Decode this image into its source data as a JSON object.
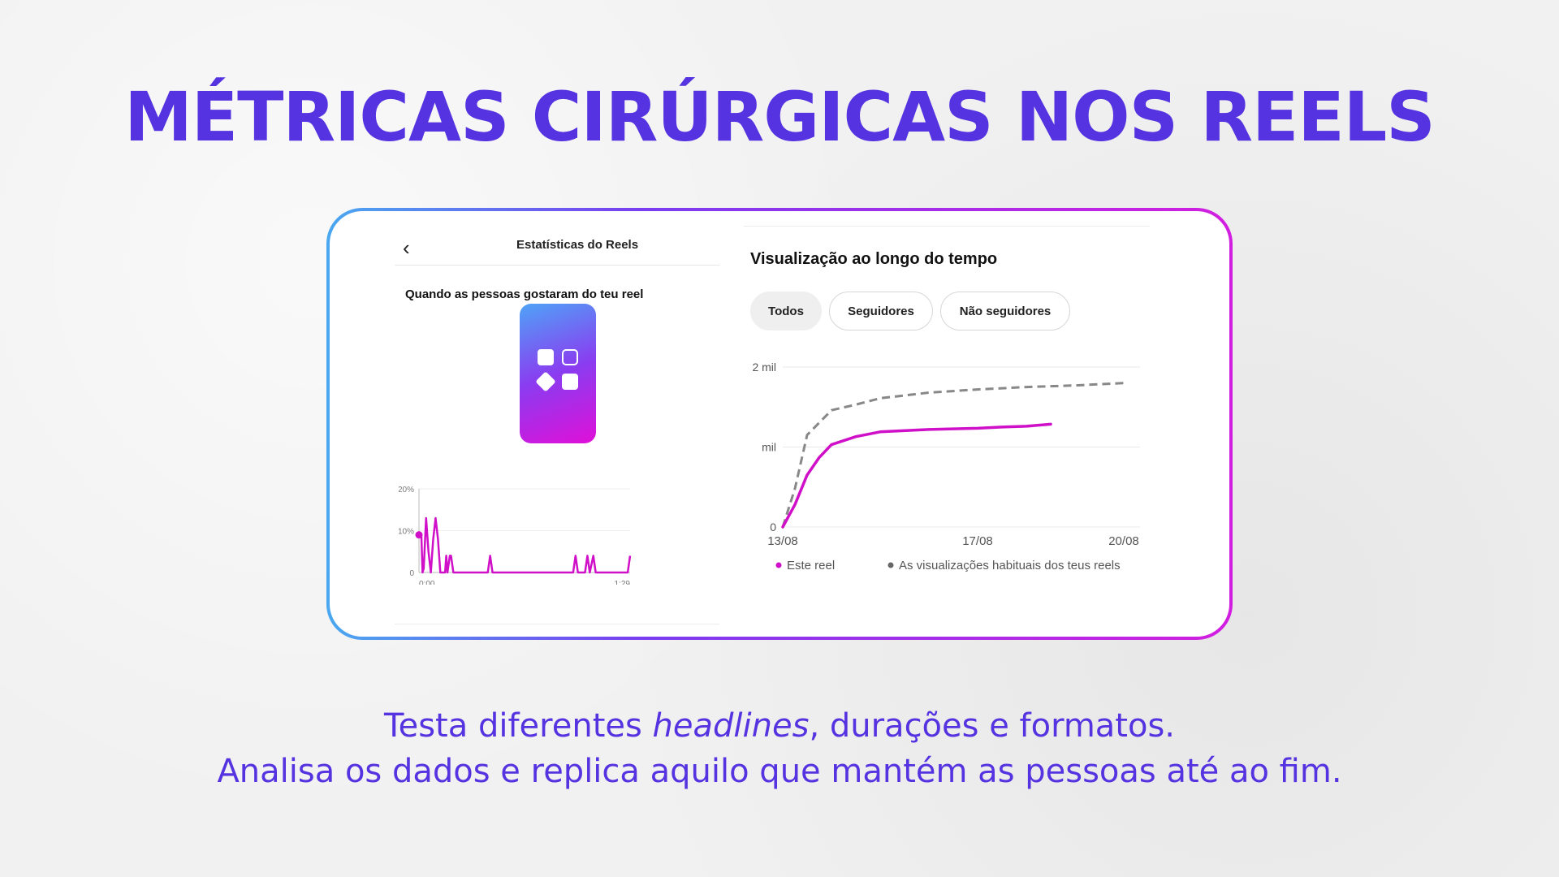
{
  "title": "MÉTRICAS CIRÚRGICAS NOS REELS",
  "colors": {
    "accent": "#5533e0",
    "series_reel": "#d010c8",
    "series_habitual": "#888888"
  },
  "left_panel": {
    "back_icon": "chevron-left-icon",
    "title": "Estatísticas do Reels",
    "liked_title": "Quando as pessoas gostaram do teu reel",
    "placeholder_icon": "apps-grid-icon"
  },
  "right_panel": {
    "title": "Visualização ao longo do tempo",
    "tabs": [
      "Todos",
      "Seguidores",
      "Não seguidores"
    ],
    "active_tab": "Todos"
  },
  "footer": {
    "line1_pre": "Testa diferentes ",
    "line1_em": "headlines",
    "line1_post": ", durações e formatos.",
    "line2": "Analisa os dados e replica aquilo que mantém as pessoas até ao fim."
  },
  "chart_data": [
    {
      "type": "line",
      "title": "Quando as pessoas gostaram do teu reel",
      "y_tick_labels": [
        "0",
        "10%",
        "20%"
      ],
      "x_tick_labels": [
        "0:00",
        "1:29"
      ],
      "ylim": [
        0,
        20
      ],
      "xlim": [
        0,
        89
      ],
      "series": [
        {
          "points": [
            [
              0,
              9
            ],
            [
              1,
              9
            ],
            [
              1.5,
              0
            ],
            [
              2,
              1
            ],
            [
              3,
              13
            ],
            [
              4,
              5
            ],
            [
              5,
              0
            ],
            [
              6,
              8
            ],
            [
              7,
              13
            ],
            [
              8,
              8
            ],
            [
              9,
              0
            ],
            [
              11,
              0
            ],
            [
              11.5,
              4
            ],
            [
              12,
              0
            ],
            [
              13,
              4
            ],
            [
              13.5,
              4
            ],
            [
              14.5,
              0
            ],
            [
              29,
              0
            ],
            [
              30,
              4
            ],
            [
              31,
              0
            ],
            [
              65,
              0
            ],
            [
              66,
              4
            ],
            [
              67,
              0
            ],
            [
              70,
              0
            ],
            [
              71,
              4
            ],
            [
              72,
              0
            ],
            [
              73.5,
              4
            ],
            [
              74.5,
              0
            ],
            [
              88,
              0
            ],
            [
              89,
              4
            ]
          ]
        }
      ]
    },
    {
      "type": "line",
      "title": "Visualização ao longo do tempo",
      "y_tick_labels": [
        "0",
        "mil",
        "2 mil"
      ],
      "x_tick_labels": [
        "13/08",
        "17/08",
        "20/08"
      ],
      "ylim": [
        0,
        2000
      ],
      "xlim": [
        "13/08",
        "20/08"
      ],
      "legend": [
        "Este reel",
        "As visualizações habituais dos teus reels"
      ],
      "legend_position": "bottom",
      "series": [
        {
          "name": "Este reel",
          "points": [
            [
              "13/08",
              0
            ],
            [
              "13/08 06h",
              280
            ],
            [
              "13/08 12h",
              650
            ],
            [
              "13/08 18h",
              870
            ],
            [
              "14/08",
              1030
            ],
            [
              "14/08 12h",
              1130
            ],
            [
              "15/08",
              1190
            ],
            [
              "16/08",
              1220
            ],
            [
              "17/08",
              1235
            ],
            [
              "17/08 12h",
              1250
            ],
            [
              "18/08",
              1260
            ],
            [
              "18/08 12h",
              1285
            ]
          ]
        },
        {
          "name": "As visualizações habituais dos teus reels",
          "points": [
            [
              "13/08",
              0
            ],
            [
              "13/08 06h",
              480
            ],
            [
              "13/08 12h",
              1150
            ],
            [
              "14/08",
              1460
            ],
            [
              "14/08 12h",
              1530
            ],
            [
              "15/08",
              1610
            ],
            [
              "16/08",
              1680
            ],
            [
              "17/08",
              1720
            ],
            [
              "18/08",
              1750
            ],
            [
              "19/08",
              1770
            ],
            [
              "20/08",
              1800
            ]
          ]
        }
      ]
    }
  ]
}
